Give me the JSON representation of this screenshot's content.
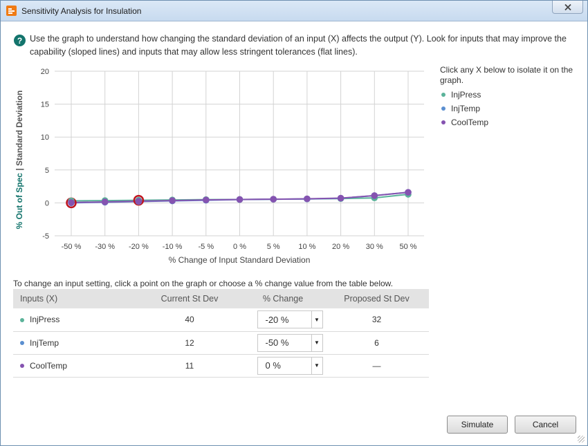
{
  "window": {
    "title": "Sensitivity Analysis for Insulation"
  },
  "instructions": "Use the graph to understand how changing the standard deviation of an input (X) affects the output (Y).  Look for inputs that may improve the capability (sloped lines) and inputs that may allow less stringent tolerances (flat lines).",
  "legend": {
    "intro": "Click any X below to isolate it on the graph.",
    "items": [
      {
        "label": "InjPress",
        "color": "#5bb39a"
      },
      {
        "label": "InjTemp",
        "color": "#5b8fd0"
      },
      {
        "label": "CoolTemp",
        "color": "#8553b0"
      }
    ]
  },
  "chart_data": {
    "type": "line",
    "ylabel_part1": "% Out of Spec",
    "ylabel_sep": "|",
    "ylabel_part2": "Standard Deviation",
    "xlabel": "% Change of Input Standard Deviation",
    "categories": [
      "-50 %",
      "-30 %",
      "-20 %",
      "-10 %",
      "-5 %",
      "0 %",
      "5 %",
      "10 %",
      "20 %",
      "30 %",
      "50 %"
    ],
    "yticks": [
      "20",
      "15",
      "10",
      "5",
      "0",
      "-5"
    ],
    "ylim": [
      -5,
      20
    ],
    "grid": true,
    "series": [
      {
        "name": "InjPress",
        "color": "#5bb39a",
        "values": [
          0.3,
          0.35,
          0.4,
          0.45,
          0.5,
          0.52,
          0.55,
          0.6,
          0.65,
          0.75,
          1.3
        ]
      },
      {
        "name": "InjTemp",
        "color": "#5b8fd0",
        "values": [
          0.0,
          0.1,
          0.2,
          0.3,
          0.4,
          0.5,
          0.55,
          0.6,
          0.7,
          1.1,
          1.6
        ]
      },
      {
        "name": "CoolTemp",
        "color": "#8553b0",
        "values": [
          0.05,
          0.15,
          0.25,
          0.35,
          0.45,
          0.52,
          0.56,
          0.62,
          0.72,
          1.1,
          1.6
        ]
      }
    ],
    "selected": [
      {
        "series": "InjTemp",
        "category": "-50 %"
      },
      {
        "series": "InjPress",
        "category": "-20 %"
      }
    ]
  },
  "change_hint": "To change an input setting, click a point on the graph or choose a % change value from the table below.",
  "table": {
    "headers": [
      "Inputs (X)",
      "Current St Dev",
      "% Change",
      "Proposed St Dev"
    ],
    "rows": [
      {
        "name": "InjPress",
        "color": "#5bb39a",
        "current": "40",
        "change": "-20 %",
        "proposed": "32"
      },
      {
        "name": "InjTemp",
        "color": "#5b8fd0",
        "current": "12",
        "change": "-50 %",
        "proposed": "6"
      },
      {
        "name": "CoolTemp",
        "color": "#8553b0",
        "current": "11",
        "change": "0 %",
        "proposed": "—"
      }
    ]
  },
  "buttons": {
    "simulate": "Simulate",
    "cancel": "Cancel"
  },
  "icons": {
    "close": "close-icon",
    "help": "help-icon",
    "dropdown": "dropdown-arrow-icon"
  },
  "colors": {
    "help": "#13746c",
    "ylabel_highlight": "#13746c",
    "selected_ring": "#c0141f"
  }
}
